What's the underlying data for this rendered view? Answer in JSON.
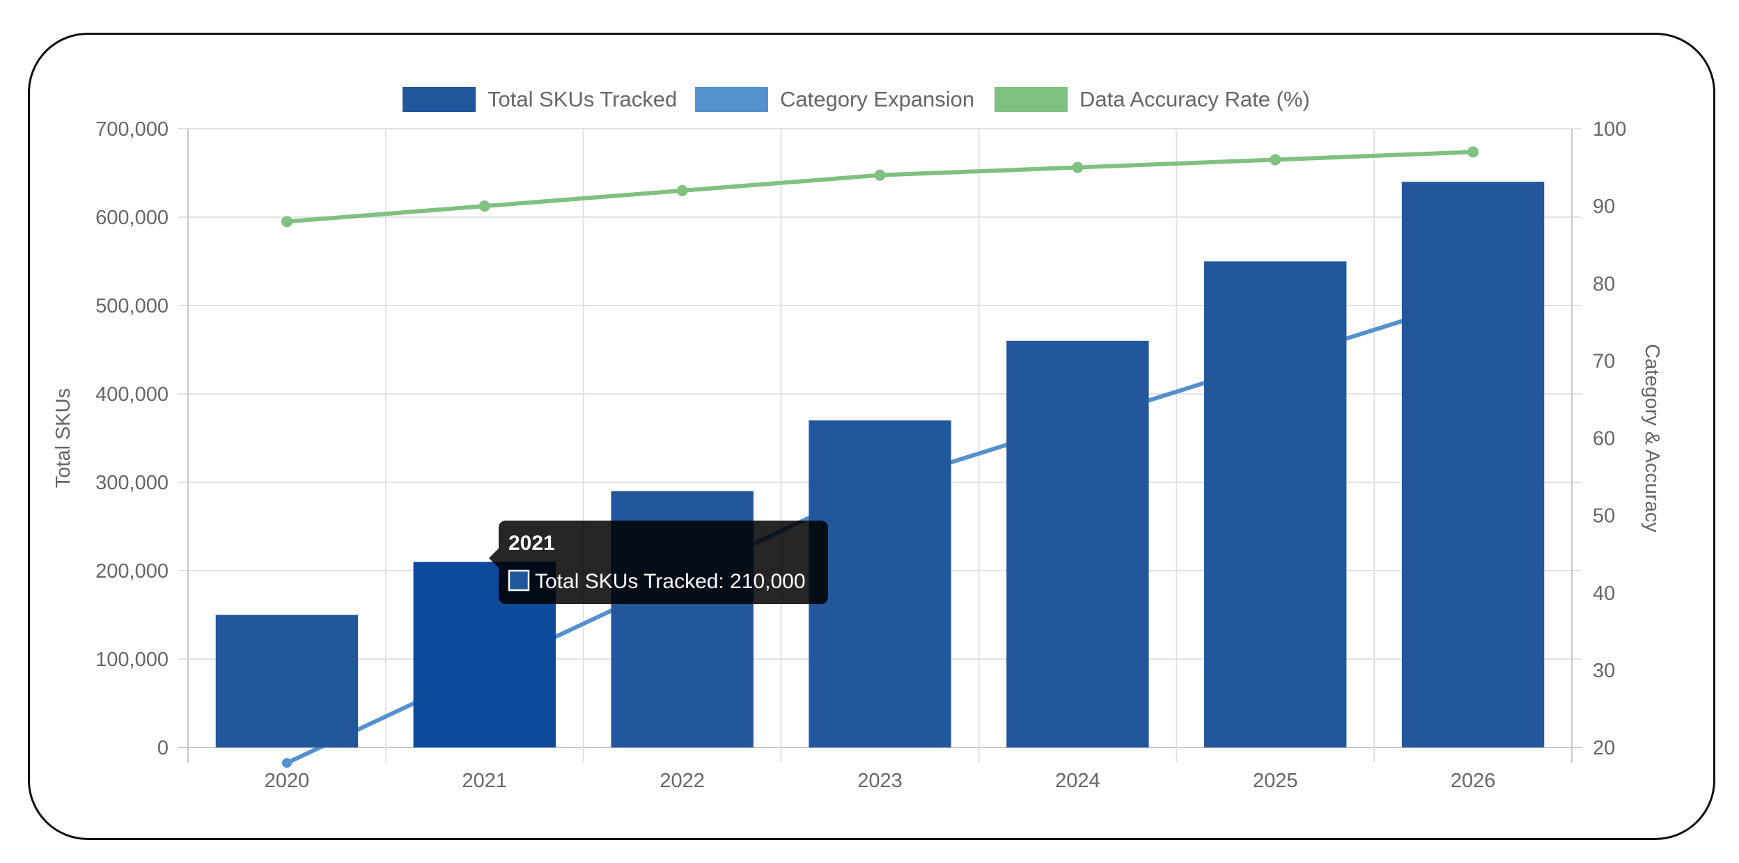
{
  "chart_data": {
    "type": "bar",
    "categories": [
      "2020",
      "2021",
      "2022",
      "2023",
      "2024",
      "2025",
      "2026"
    ],
    "series": [
      {
        "name": "Total SKUs Tracked",
        "type": "bar",
        "axis": "left",
        "color": "#22579b",
        "values": [
          150000,
          210000,
          290000,
          370000,
          460000,
          550000,
          640000
        ]
      },
      {
        "name": "Category Expansion",
        "type": "line",
        "axis": "right",
        "color": "#5590cf",
        "values": [
          18,
          30,
          42,
          54,
          62,
          70,
          78
        ]
      },
      {
        "name": "Data Accuracy Rate (%)",
        "type": "line",
        "axis": "right",
        "color": "#7fc180",
        "values": [
          88,
          90,
          92,
          94,
          95,
          96,
          97
        ]
      }
    ],
    "y_left": {
      "label": "Total SKUs",
      "min": 0,
      "max": 700000,
      "ticks": [
        "0",
        "100,000",
        "200,000",
        "300,000",
        "400,000",
        "500,000",
        "600,000",
        "700,000"
      ]
    },
    "y_right": {
      "label": "Category & Accuracy",
      "min": 20,
      "max": 100,
      "ticks": [
        "20",
        "30",
        "40",
        "50",
        "60",
        "70",
        "80",
        "90",
        "100"
      ]
    },
    "grid": true,
    "legend_position": "top-center",
    "highlighted_bar_color": "#0d4a9b",
    "tooltip": {
      "title": "2021",
      "label": "Total SKUs Tracked: 210,000",
      "category_index": 1
    }
  }
}
